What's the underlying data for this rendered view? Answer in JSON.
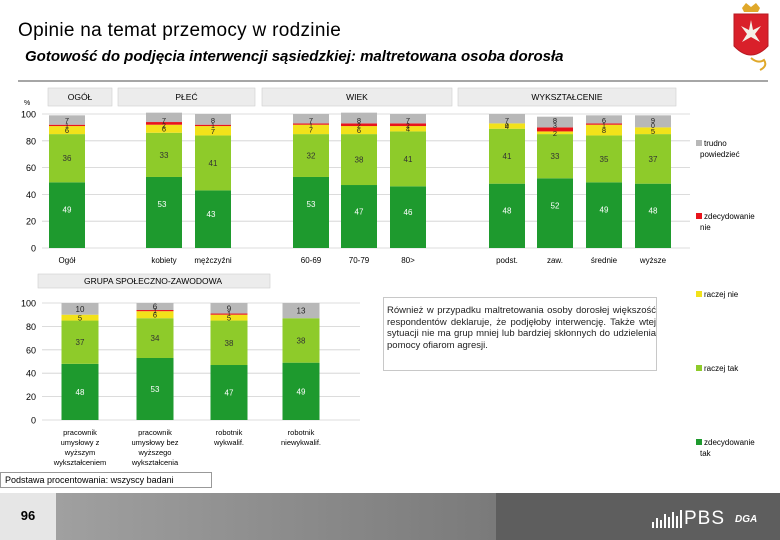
{
  "title": "Opinie na temat przemocy w rodzinie",
  "subtitle": "Gotowość do podjęcia interwencji sąsiedzkiej: maltretowana osoba dorosła",
  "page_number": "96",
  "basis": "Podstawa procentowania: wszyscy badani",
  "note": "Również w przypadku maltretowania osoby dorosłej większość respondentów deklaruje, że podjęłoby interwencję. Także wtej sytuacji nie ma grup mniej lub bardziej skłonnych do udzielenia pomocy ofiarom agresji.",
  "logo": "PBS",
  "logo_suffix": "DGA",
  "colors": {
    "dark_green": "#1e9a2e",
    "light_green": "#8ecb2a",
    "yellow": "#f2e21a",
    "red": "#e8141c",
    "gray": "#b8b8b8"
  },
  "chart_data": [
    {
      "type": "stacked-bar",
      "y_unit": "%",
      "ylim": [
        0,
        100
      ],
      "yticks": [
        "0",
        "20",
        "40",
        "60",
        "80",
        "100"
      ],
      "groups": [
        {
          "label": "OGÓŁ",
          "start": 0,
          "end": 0
        },
        {
          "label": "PŁEĆ",
          "start": 1,
          "end": 2
        },
        {
          "label": "WIEK",
          "start": 3,
          "end": 5
        },
        {
          "label": "WYKSZTAŁCENIE",
          "start": 6,
          "end": 9
        }
      ],
      "categories": [
        "Ogół",
        "kobiety",
        "mężczyźni",
        "60-69",
        "70-79",
        "80>",
        "podst.",
        "zaw.",
        "średnie",
        "wyższe"
      ],
      "series": [
        {
          "name": "zdecydowanie tak",
          "color": "#1e9a2e",
          "values": [
            49,
            53,
            43,
            53,
            47,
            46,
            48,
            52,
            49,
            48
          ]
        },
        {
          "name": "raczej tak",
          "color": "#8ecb2a",
          "values": [
            36,
            33,
            41,
            32,
            38,
            41,
            41,
            33,
            35,
            37
          ]
        },
        {
          "name": "raczej nie",
          "color": "#f2e21a",
          "values": [
            6,
            6,
            7,
            7,
            6,
            4,
            4,
            2,
            8,
            5
          ]
        },
        {
          "name": "zdecydowanie nie",
          "color": "#e8141c",
          "values": [
            1,
            2,
            1,
            1,
            2,
            2,
            0,
            3,
            1,
            0
          ]
        },
        {
          "name": "trudno powiedzieć",
          "color": "#b8b8b8",
          "values": [
            7,
            7,
            8,
            7,
            8,
            7,
            7,
            8,
            6,
            9
          ]
        }
      ],
      "legend": [
        {
          "label": "trudno powiedzieć",
          "color": "#b8b8b8"
        },
        {
          "label": "zdecydowanie nie",
          "color": "#e8141c"
        }
      ]
    },
    {
      "type": "stacked-bar",
      "title": "GRUPA SPOŁECZNO-ZAWODOWA",
      "ylim": [
        0,
        100
      ],
      "yticks": [
        "0",
        "20",
        "40",
        "60",
        "80",
        "100"
      ],
      "categories": [
        "pracownik umysłowy z wyższym wykształceniem",
        "pracownik umysłowy bez wyższego wykształcenia",
        "robotnik wykwalif.",
        "robotnik niewykwalif."
      ],
      "category_lines": [
        [
          "pracownik",
          "umysłowy z",
          "wyższym",
          "wykształceniem"
        ],
        [
          "pracownik",
          "umysłowy bez",
          "wyższego",
          "wykształcenia"
        ],
        [
          "robotnik",
          "wykwalif."
        ],
        [
          "robotnik",
          "niewykwalif."
        ]
      ],
      "series": [
        {
          "name": "zdecydowanie tak",
          "color": "#1e9a2e",
          "values": [
            48,
            53,
            47,
            49
          ]
        },
        {
          "name": "raczej tak",
          "color": "#8ecb2a",
          "values": [
            37,
            34,
            38,
            38
          ]
        },
        {
          "name": "raczej nie",
          "color": "#f2e21a",
          "values": [
            5,
            6,
            5,
            0
          ]
        },
        {
          "name": "zdecydowanie nie",
          "color": "#e8141c",
          "values": [
            0,
            1,
            1,
            0
          ]
        },
        {
          "name": "trudno powiedzieć",
          "color": "#b8b8b8",
          "values": [
            10,
            6,
            9,
            13
          ]
        }
      ],
      "legend": [
        {
          "label": "raczej nie",
          "color": "#f2e21a"
        },
        {
          "label": "raczej tak",
          "color": "#8ecb2a"
        },
        {
          "label": "zdecydowanie tak",
          "color": "#1e9a2e"
        }
      ]
    }
  ]
}
